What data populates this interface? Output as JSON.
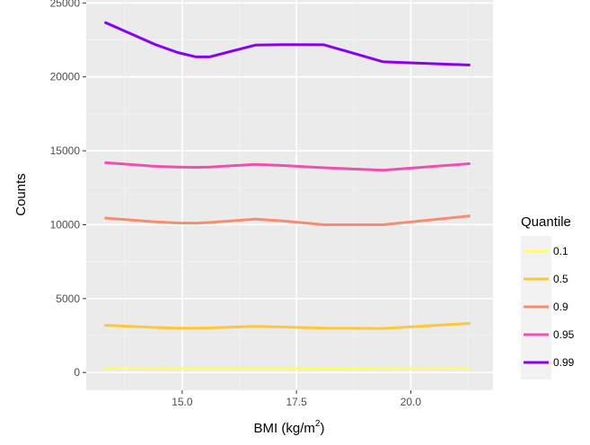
{
  "chart_data": {
    "type": "line",
    "xlabel": "BMI (kg/m",
    "xlabel_superscript": "2",
    "xlabel_suffix": ")",
    "ylabel": "Counts",
    "xlim": [
      12.9,
      21.8
    ],
    "ylim": [
      -1200,
      25200
    ],
    "x_ticks": [
      15.0,
      17.5,
      20.0
    ],
    "x_tick_labels": [
      "15.0",
      "17.5",
      "20.0"
    ],
    "y_ticks": [
      0,
      5000,
      10000,
      15000,
      20000,
      25000
    ],
    "y_tick_labels": [
      "0",
      "5000",
      "10000",
      "15000",
      "20000",
      "25000"
    ],
    "grid": true,
    "legend": {
      "title": "Quantile",
      "position": "right"
    },
    "x": [
      13.3,
      14.4,
      14.9,
      15.3,
      15.6,
      16.6,
      17.2,
      18.1,
      19.4,
      21.3
    ],
    "series": [
      {
        "name": "0.1",
        "color": "#ffff60",
        "values": [
          300,
          280,
          270,
          270,
          270,
          270,
          270,
          260,
          270,
          300
        ]
      },
      {
        "name": "0.5",
        "color": "#fcc83a",
        "values": [
          3200,
          3050,
          3000,
          3000,
          3020,
          3120,
          3080,
          3000,
          2980,
          3330
        ]
      },
      {
        "name": "0.9",
        "color": "#f68c70",
        "values": [
          10450,
          10200,
          10120,
          10100,
          10150,
          10380,
          10250,
          10000,
          10000,
          10600
        ]
      },
      {
        "name": "0.95",
        "color": "#ef4fb1",
        "values": [
          14200,
          13950,
          13900,
          13880,
          13900,
          14080,
          14000,
          13850,
          13680,
          14130
        ]
      },
      {
        "name": "0.99",
        "color": "#8b00f0",
        "values": [
          23700,
          22200,
          21650,
          21350,
          21350,
          22150,
          22180,
          22170,
          21020,
          20800
        ]
      }
    ]
  }
}
